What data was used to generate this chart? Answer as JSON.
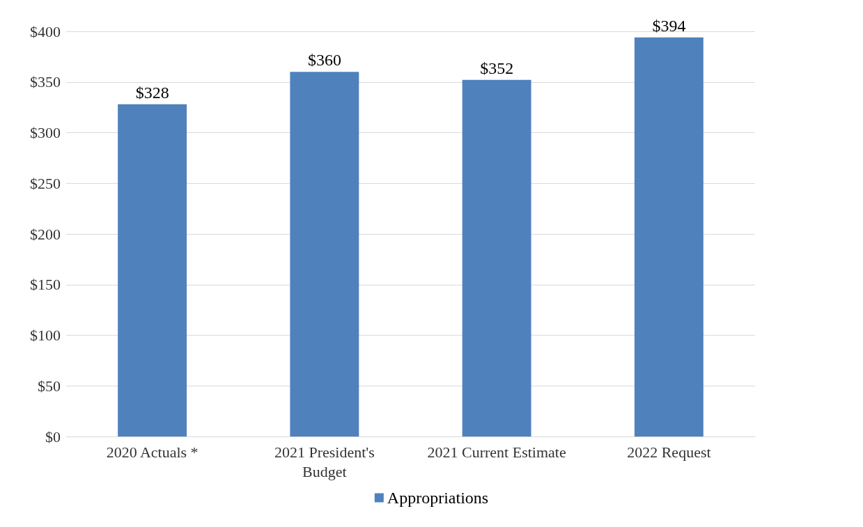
{
  "chart_data": {
    "type": "bar",
    "categories": [
      "2020 Actuals *",
      "2021 President's\nBudget",
      "2021 Current Estimate",
      "2022 Request"
    ],
    "series": [
      {
        "name": "Appropriations",
        "color": "#4f81bd",
        "values": [
          328,
          360,
          352,
          394
        ]
      }
    ],
    "ylim": [
      0,
      400
    ],
    "yticks": [
      {
        "value": 0,
        "label": "$0"
      },
      {
        "value": 50,
        "label": "$50"
      },
      {
        "value": 100,
        "label": "$100"
      },
      {
        "value": 150,
        "label": "$150"
      },
      {
        "value": 200,
        "label": "$200"
      },
      {
        "value": 250,
        "label": "$250"
      },
      {
        "value": 300,
        "label": "$300"
      },
      {
        "value": 350,
        "label": "$350"
      },
      {
        "value": 400,
        "label": "$400"
      }
    ],
    "value_labels": [
      "$328",
      "$360",
      "$352",
      "$394"
    ],
    "grid": "y",
    "legend": "bottom"
  }
}
